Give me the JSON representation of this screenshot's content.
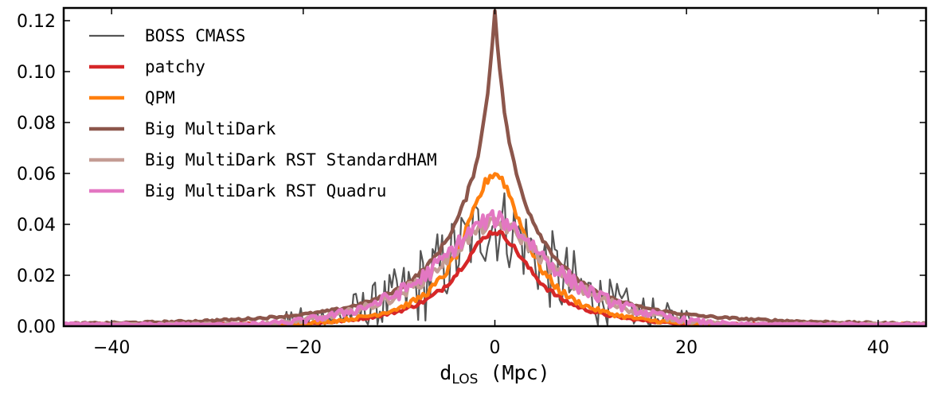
{
  "chart_data": {
    "type": "line",
    "title": "",
    "xlabel": {
      "main": "d",
      "sub": "LOS",
      "unit": " (Mpc)"
    },
    "ylabel": "",
    "xlim": [
      -45,
      45
    ],
    "ylim": [
      0,
      0.125
    ],
    "x_ticks": [
      {
        "value": -40,
        "label": "−40"
      },
      {
        "value": -20,
        "label": "−20"
      },
      {
        "value": 0,
        "label": "0"
      },
      {
        "value": 20,
        "label": "20"
      },
      {
        "value": 40,
        "label": "40"
      }
    ],
    "y_ticks": [
      {
        "value": 0.0,
        "label": "0.00"
      },
      {
        "value": 0.02,
        "label": "0.02"
      },
      {
        "value": 0.04,
        "label": "0.04"
      },
      {
        "value": 0.06,
        "label": "0.06"
      },
      {
        "value": 0.08,
        "label": "0.08"
      },
      {
        "value": 0.1,
        "label": "0.10"
      },
      {
        "value": 0.12,
        "label": "0.12"
      }
    ],
    "grid": false,
    "legend_position": "top-left",
    "series": [
      {
        "name": "BOSS CMASS",
        "color": "#555555",
        "width": 2.2,
        "peak": 0.04,
        "halfwidth": 6.5,
        "shape": "lorentz",
        "noise": 0.012
      },
      {
        "name": "patchy",
        "color": "#d62728",
        "width": 4.5,
        "peak": 0.037,
        "halfwidth": 4.5,
        "shape": "lorentz",
        "noise": 0.0008
      },
      {
        "name": "QPM",
        "color": "#ff7f0e",
        "width": 4.5,
        "peak": 0.06,
        "halfwidth": 3.8,
        "shape": "lorentz",
        "noise": 0.0015
      },
      {
        "name": "Big MultiDark",
        "color": "#8c564b",
        "width": 4.5,
        "peak": 0.125,
        "halfwidth": 1.2,
        "shape": "cusp",
        "noise": 0.001
      },
      {
        "name": "Big MultiDark RST StandardHAM",
        "color": "#c49c94",
        "width": 4.5,
        "peak": 0.04,
        "halfwidth": 7.0,
        "shape": "lorentz",
        "noise": 0.002
      },
      {
        "name": "Big MultiDark RST Quadru",
        "color": "#e377c2",
        "width": 4.5,
        "peak": 0.042,
        "halfwidth": 7.0,
        "shape": "lorentz",
        "noise": 0.0025
      }
    ]
  }
}
